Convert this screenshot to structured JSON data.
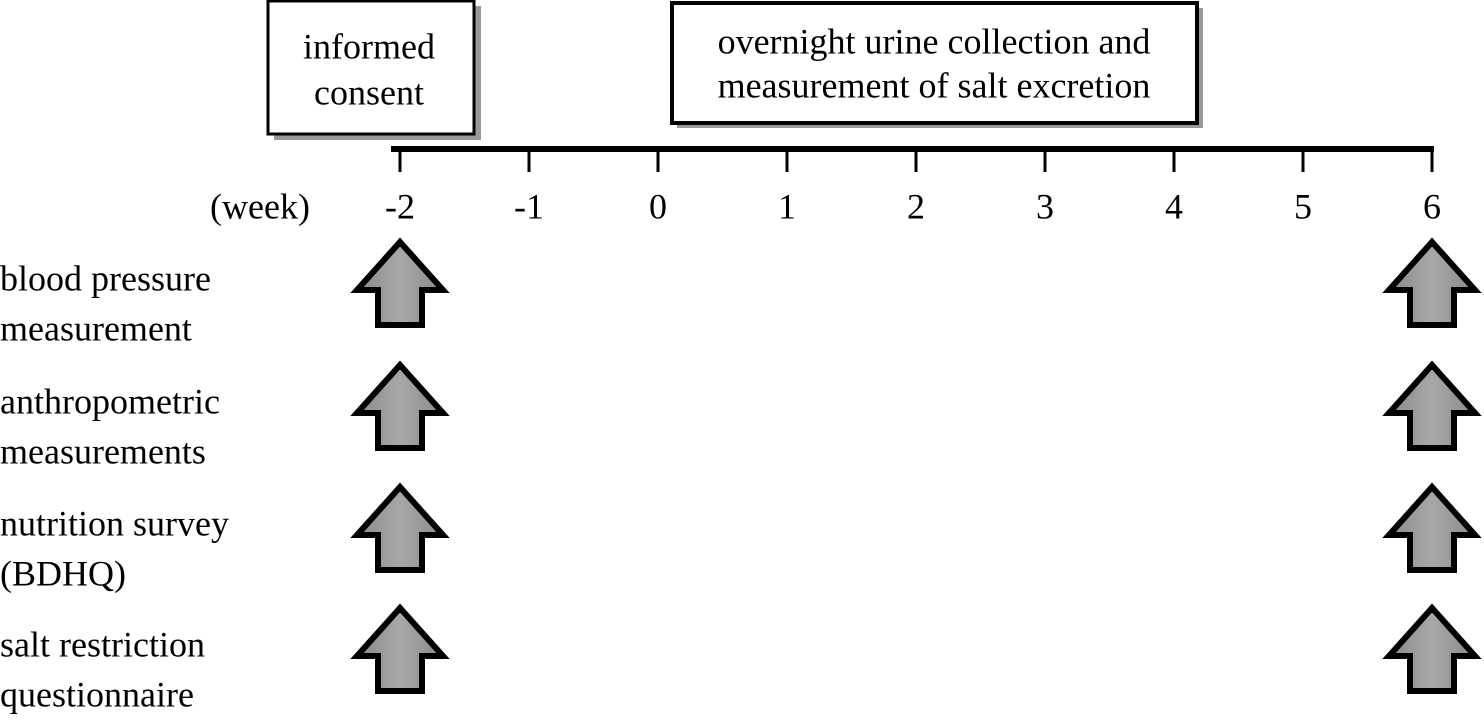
{
  "boxes": [
    {
      "lines": [
        "informed",
        "consent"
      ]
    },
    {
      "lines": [
        "overnight urine collection and",
        "measurement of salt excretion"
      ]
    }
  ],
  "timeline": {
    "unit": "(week)",
    "ticks": [
      "-2",
      "-1",
      "0",
      "1",
      "2",
      "3",
      "4",
      "5",
      "6"
    ]
  },
  "rows": [
    {
      "lines": [
        "blood pressure",
        "measurement"
      ]
    },
    {
      "lines": [
        "anthropometric",
        "measurements"
      ]
    },
    {
      "lines": [
        "nutrition survey",
        "(BDHQ)"
      ]
    },
    {
      "lines": [
        "salt restriction",
        "questionnaire"
      ]
    }
  ]
}
